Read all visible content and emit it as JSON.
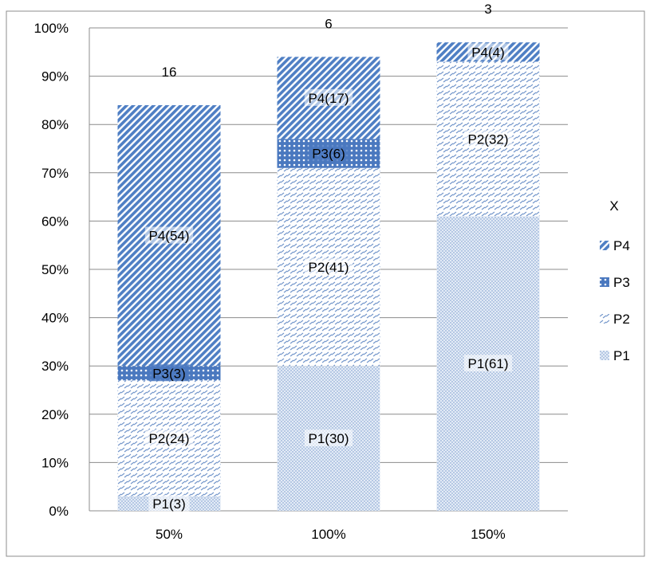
{
  "chart_data": {
    "type": "bar",
    "stacked": true,
    "categories": [
      "50%",
      "100%",
      "150%"
    ],
    "series": [
      {
        "name": "P1",
        "values": [
          3,
          30,
          61
        ],
        "labels": [
          "P1(3)",
          "P1(30)",
          "P1(61)"
        ],
        "pattern": "dots",
        "color": "#4f81bd"
      },
      {
        "name": "P2",
        "values": [
          24,
          41,
          32
        ],
        "labels": [
          "P2(24)",
          "P2(41)",
          "P2(32)"
        ],
        "pattern": "dashes",
        "color": "#4f81bd"
      },
      {
        "name": "P3",
        "values": [
          3,
          6,
          0
        ],
        "labels": [
          "P3(3)",
          "P3(6)",
          ""
        ],
        "pattern": "dense-dots",
        "color": "#4f81bd"
      },
      {
        "name": "P4",
        "values": [
          54,
          17,
          4
        ],
        "labels": [
          "P4(54)",
          "P4(17)",
          "P4(4)"
        ],
        "pattern": "diagonal-stripes",
        "color": "#4f81bd"
      }
    ],
    "top_labels": [
      "16",
      "6",
      "3"
    ],
    "y_ticks": [
      "0%",
      "10%",
      "20%",
      "30%",
      "40%",
      "50%",
      "60%",
      "70%",
      "80%",
      "90%",
      "100%"
    ],
    "ylim": [
      0,
      100
    ],
    "legend_title": "X",
    "legend_position": "right",
    "legend_order": [
      "P4",
      "P3",
      "P2",
      "P1"
    ],
    "grid": true
  }
}
